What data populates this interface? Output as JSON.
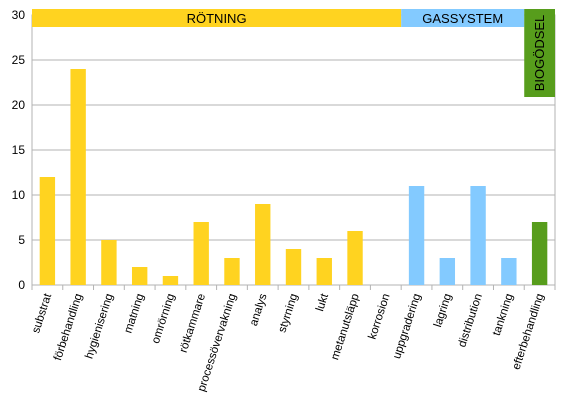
{
  "chart_data": {
    "type": "bar",
    "title": "",
    "xlabel": "",
    "ylabel": "",
    "ylim": [
      0,
      30
    ],
    "yticks": [
      0,
      5,
      10,
      15,
      20,
      25,
      30
    ],
    "grid": true,
    "categories": [
      "substrat",
      "förbehandling",
      "hygienisering",
      "matning",
      "omrörning",
      "rötkammare",
      "processövervakning",
      "analys",
      "styrning",
      "lukt",
      "metanutsläpp",
      "korrosion",
      "uppgradering",
      "lagring",
      "distribution",
      "tankning",
      "efterbehandling"
    ],
    "values": [
      12,
      24,
      5,
      2,
      1,
      7,
      3,
      9,
      4,
      3,
      6,
      0,
      11,
      3,
      11,
      3,
      7
    ],
    "groups": [
      {
        "name": "RÖTNING",
        "start": 0,
        "end": 11,
        "color": "#ffd320"
      },
      {
        "name": "GASSYSTEM",
        "start": 12,
        "end": 15,
        "color": "#83caff"
      },
      {
        "name": "BIOGÖDSEL",
        "start": 16,
        "end": 16,
        "color": "#579d1c"
      }
    ]
  }
}
